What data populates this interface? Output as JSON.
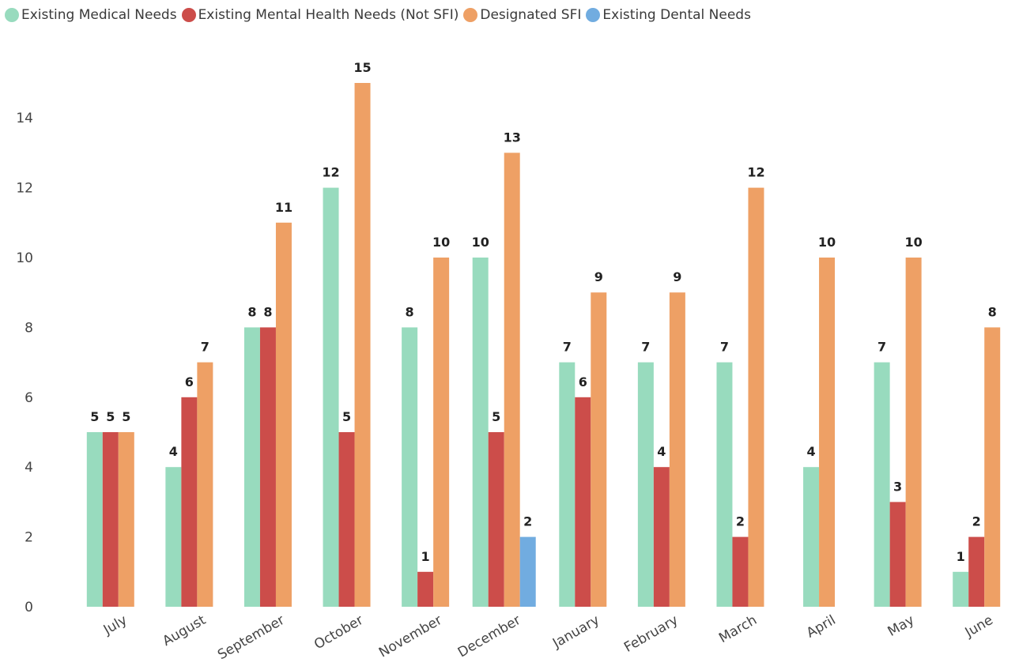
{
  "chart_data": {
    "type": "bar",
    "title": "",
    "xlabel": "",
    "ylabel": "",
    "ylim": [
      0,
      15
    ],
    "yticks": [
      0,
      2,
      4,
      6,
      8,
      10,
      12,
      14
    ],
    "grid": false,
    "legend_position": "top-left",
    "categories": [
      "July",
      "August",
      "September",
      "October",
      "November",
      "December",
      "January",
      "February",
      "March",
      "April",
      "May",
      "June"
    ],
    "series": [
      {
        "name": "Existing Medical Needs",
        "color": "#98dbbe",
        "values": [
          5,
          4,
          8,
          12,
          8,
          10,
          7,
          7,
          7,
          4,
          7,
          1
        ]
      },
      {
        "name": "Existing Mental Health Needs (Not SFI)",
        "color": "#cc4d4a",
        "values": [
          5,
          6,
          8,
          5,
          1,
          5,
          6,
          4,
          2,
          null,
          3,
          2
        ]
      },
      {
        "name": "Designated SFI",
        "color": "#eea065",
        "values": [
          5,
          7,
          11,
          15,
          10,
          13,
          9,
          9,
          12,
          10,
          10,
          8
        ]
      },
      {
        "name": "Existing Dental Needs",
        "color": "#71ace0",
        "values": [
          null,
          null,
          null,
          null,
          null,
          2,
          null,
          null,
          null,
          null,
          null,
          null
        ]
      }
    ]
  }
}
